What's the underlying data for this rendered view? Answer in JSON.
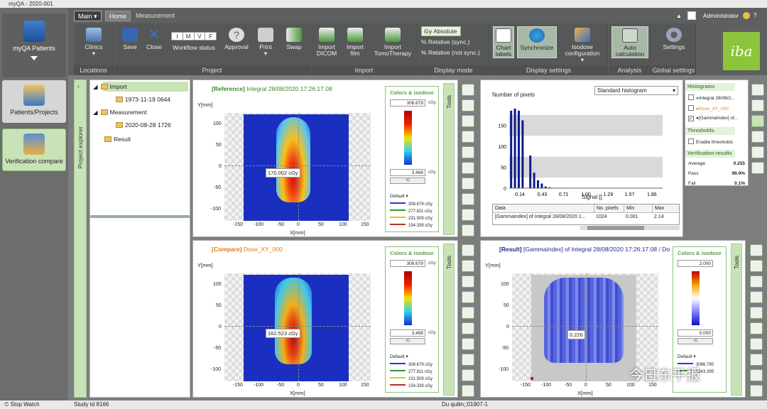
{
  "window": {
    "title": "myQA - 2020-001"
  },
  "sidebar": {
    "items": [
      {
        "label": "myQA Patients"
      },
      {
        "label": "Patients/Projects"
      },
      {
        "label": "Verification compare"
      },
      {
        "label": "Stop Watch"
      }
    ]
  },
  "ribbon": {
    "main_menu": "Main",
    "tabs": [
      "Home",
      "Measurement"
    ],
    "user": "Administrator",
    "groups": [
      {
        "title": "Locations",
        "buttons": [
          "Clinics"
        ]
      },
      {
        "title": "Project",
        "buttons": [
          "Save",
          "Close",
          "Workflow status",
          "Approval",
          "Print",
          "Swap"
        ]
      },
      {
        "title": "Import",
        "buttons": [
          "Import DICOM",
          "Import film",
          "Import TomoTherapy"
        ]
      },
      {
        "title": "Display mode",
        "buttons": [
          "Absolute",
          "Relative (sync.)",
          "Relative (not sync.)"
        ]
      },
      {
        "title": "Display settings",
        "buttons": [
          "Chart labels",
          "Synchronize",
          "Isodose configuration"
        ]
      },
      {
        "title": "Analysis",
        "buttons": [
          "Auto calculation"
        ]
      },
      {
        "title": "Global settings",
        "buttons": [
          "Settings"
        ]
      }
    ],
    "workflow_letters": [
      "I",
      "M",
      "V",
      "F"
    ],
    "logo": "iba"
  },
  "explorer": {
    "title": "Project explorer",
    "tree": [
      {
        "label": "Import",
        "level": 0
      },
      {
        "label": "1973-11-19 0644",
        "level": 1
      },
      {
        "label": "Measurement",
        "level": 0
      },
      {
        "label": "2020-08-28 1726",
        "level": 1
      },
      {
        "label": "Result",
        "level": 0
      }
    ]
  },
  "reference": {
    "tag": "[Reference]",
    "title": "Integral 28/08/2020 17:26:17.08",
    "ylabel": "Y[mm]",
    "xlabel": "X[mm]",
    "xticks": [
      "-150",
      "-100",
      "-50",
      "0",
      "50",
      "100",
      "150"
    ],
    "yticks": [
      "100",
      "50",
      "0",
      "-50",
      "-100"
    ],
    "cursor_value": "170.002 cGy",
    "colors": {
      "title": "Colors & isodose",
      "max": "308.679",
      "min": "3.468",
      "unit": "cGy",
      "preset": "Default",
      "isodose": [
        {
          "value": "308.679 cGy",
          "color": "#1f3fd0"
        },
        {
          "value": "277.811 cGy",
          "color": "#2d9a2d"
        },
        {
          "value": "231.509 cGy",
          "color": "#d8c81b"
        },
        {
          "value": "154.339 cGy",
          "color": "#b3302a"
        }
      ]
    }
  },
  "compare": {
    "tag": "[Compare]",
    "title": "Dose_XY_000",
    "ylabel": "Y[mm]",
    "xlabel": "X[mm]",
    "xticks": [
      "-150",
      "-100",
      "-50",
      "0",
      "50",
      "100",
      "150"
    ],
    "yticks": [
      "100",
      "50",
      "0",
      "-50",
      "-100"
    ],
    "cursor_value": "162.523 cGy",
    "colors": {
      "title": "Colors & isodose",
      "max": "308.679",
      "min": "3.468",
      "unit": "cGy",
      "preset": "Default",
      "isodose": [
        {
          "value": "308.679 cGy",
          "color": "#1f3fd0"
        },
        {
          "value": "277.811 cGy",
          "color": "#2d9a2d"
        },
        {
          "value": "231.509 cGy",
          "color": "#d8c81b"
        },
        {
          "value": "154.339 cGy",
          "color": "#b3302a"
        }
      ]
    }
  },
  "result": {
    "tag": "[Result]",
    "title": "[GammaIndex] of Integral 28/08/2020 17:26:17.08 / Do",
    "ylabel": "Y[mm]",
    "xlabel": "X[mm]",
    "xticks": [
      "-150",
      "-100",
      "-50",
      "0",
      "50",
      "100",
      "150"
    ],
    "yticks": [
      "100",
      "50",
      "0",
      "-50",
      "-100"
    ],
    "cursor_value": "0.226",
    "colors": {
      "title": "Colors & isodose",
      "max": "2.000",
      "min": "0.000",
      "preset": "Default",
      "isodose": [
        {
          "value": "3086.790",
          "color": "#1f3fd0"
        },
        {
          "value": "1543.395",
          "color": "#2d9a2d"
        }
      ]
    }
  },
  "histogram": {
    "dropdown": "Standard histogram",
    "ylabel": "Number of pixels",
    "xlabel": "Signal []",
    "table": {
      "headers": [
        "Data",
        "No. pixels",
        "Min",
        "Max"
      ],
      "row": [
        "[GammaIndex] of Integral 28/08/2020 1...",
        "1024",
        "0.001",
        "2.14"
      ]
    }
  },
  "side": {
    "histograms_title": "Histograms",
    "histograms": [
      {
        "label": "Integral 28/08/2...",
        "dot": "#2a8a2a",
        "checked": false
      },
      {
        "label": "Dose_XY_000",
        "dot": "#e08a1a",
        "checked": false
      },
      {
        "label": "[GammaIndex] of...",
        "dot": "#1a2a9a",
        "checked": true
      }
    ],
    "thresholds_title": "Thresholds",
    "enable_thresholds": "Enable thresholds",
    "verification_title": "Verification results",
    "results": [
      {
        "label": "Average",
        "value": "0.255"
      },
      {
        "label": "Pass",
        "value": "99.9%"
      },
      {
        "label": "Fail",
        "value": "0.1%"
      }
    ]
  },
  "tools_label": "Tools",
  "status": {
    "left": "Study Id 8166",
    "right": "Du quilin;;01907-1"
  },
  "watermark": "今日东平报",
  "chart_data": {
    "type": "bar",
    "title": "",
    "xlabel": "Signal []",
    "ylabel": "Number of pixels",
    "x_ticks": [
      "0.14",
      "0.43",
      "0.71",
      "1.00",
      "1.29",
      "1.57",
      "1.86"
    ],
    "y_ticks": [
      0,
      50,
      100,
      150
    ],
    "ylim": [
      0,
      200
    ],
    "bins": [
      0.0,
      0.05,
      0.1,
      0.15,
      0.2,
      0.25,
      0.3,
      0.35,
      0.4,
      0.45,
      0.5,
      0.55,
      0.6,
      0.65,
      0.7,
      0.75
    ],
    "values": [
      185,
      190,
      185,
      162,
      0,
      78,
      37,
      19,
      11,
      4,
      2,
      1,
      1,
      1,
      0,
      0
    ],
    "grid": true,
    "legend": "none"
  }
}
